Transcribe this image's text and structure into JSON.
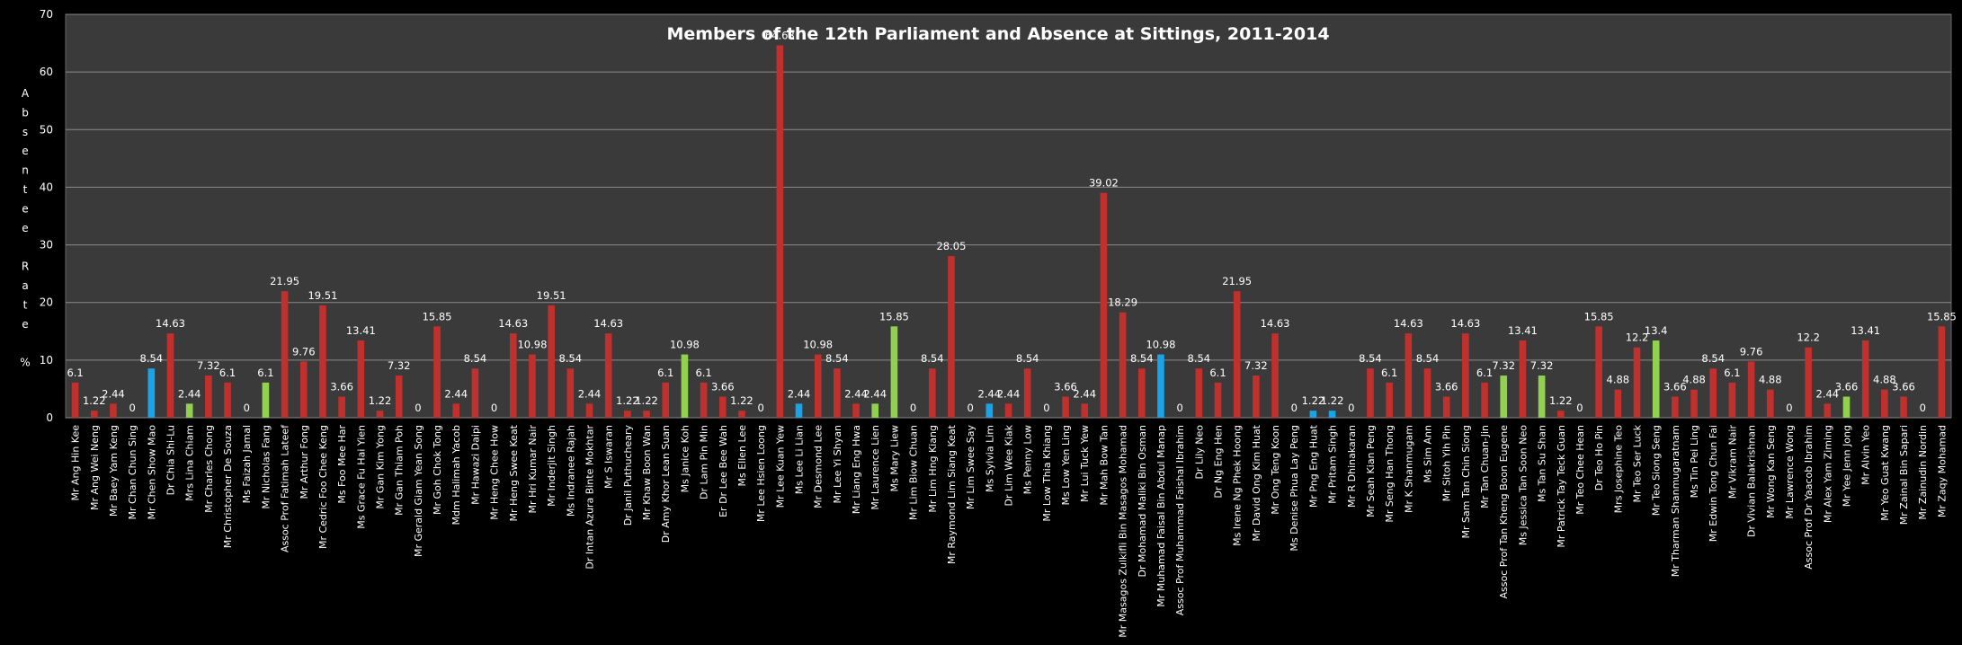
{
  "chart_data": {
    "type": "bar",
    "title": "Members of the 12th Parliament and Absence at Sittings, 2011-2014",
    "ylabel": "Absentee Rate %",
    "ylabel_lines": [
      "A",
      "b",
      "s",
      "e",
      "n",
      "t",
      "e",
      "e",
      "",
      "R",
      "a",
      "t",
      "e",
      "",
      "%"
    ],
    "ylim": [
      0,
      70
    ],
    "yticks": [
      0,
      10,
      20,
      30,
      40,
      50,
      60,
      70
    ],
    "grid": true,
    "colors": {
      "red": "#c0302c",
      "blue": "#1aa3e8",
      "green": "#92d050",
      "background": "#3a3a3a",
      "frame": "#000000"
    },
    "categories": [
      "Mr Ang Hin Kee",
      "Mr Ang Wei Neng",
      "Mr Baey Yam Keng",
      "Mr Chan Chun Sing",
      "Mr Chen Show Mao",
      "Dr Chia Shi-Lu",
      "Mrs Lina Chiam",
      "Mr Charles Chong",
      "Mr Christopher De Souza",
      "Ms Faizah Jamal",
      "Mr Nicholas Fang",
      "Assoc Prof Fatimah Lateef",
      "Mr Arthur Fong",
      "Mr Cedric Foo Chee Keng",
      "Ms Foo Mee Har",
      "Ms Grace Fu Hai Yien",
      "Mr Gan Kim Yong",
      "Mr Gan Thiam Poh",
      "Mr Gerald Giam Yean Song",
      "Mr Goh Chok Tong",
      "Mdm Halimah Yacob",
      "Mr Hawazi Daipi",
      "Mr Heng Chee How",
      "Mr Heng Swee Keat",
      "Mr Hri Kumar Nair",
      "Mr Inderjit Singh",
      "Ms Indranee Rajah",
      "Dr Intan Azura Binte Mokhtar",
      "Mr S Iswaran",
      "Dr Janil Puthucheary",
      "Mr Khaw Boon Wan",
      "Dr Amy Khor Lean Suan",
      "Ms Janice Koh",
      "Dr Lam Pin Min",
      "Er Dr Lee Bee Wah",
      "Ms Ellen Lee",
      "Mr Lee Hsien Loong",
      "Mr Lee Kuan Yew",
      "Ms Lee Li Lian",
      "Mr Desmond Lee",
      "Mr Lee Yi Shyan",
      "Mr Liang Eng Hwa",
      "Mr Laurence Lien",
      "Ms Mary Liew",
      "Mr Lim Biow Chuan",
      "Mr Lim Hng Kiang",
      "Mr Raymond Lim Siang Keat",
      "Mr Lim Swee Say",
      "Ms Sylvia Lim",
      "Dr Lim Wee Kiak",
      "Ms Penny Low",
      "Mr Low Thia Khiang",
      "Ms Low Yen Ling",
      "Mr Lui Tuck Yew",
      "Mr Mah Bow Tan",
      "Mr Masagos Zulkifli Bin Masagos Mohamad",
      "Dr Mohamad Maliki Bin Osman",
      "Mr Muhamad Faisal Bin Abdul Manap",
      "Assoc Prof Muhammad Faishal Ibrahim",
      "Dr Lily Neo",
      "Dr Ng Eng Hen",
      "Ms Irene Ng Phek Hoong",
      "Mr David Ong Kim Huat",
      "Mr Ong Teng Koon",
      "Ms Denise Phua Lay Peng",
      "Mr Png Eng Huat",
      "Mr Pritam Singh",
      "Mr R Dhinakaran",
      "Mr Seah Kian Peng",
      "Mr Seng Han Thong",
      "Mr K Shanmugam",
      "Ms Sim Ann",
      "Mr Sitoh Yih Pin",
      "Mr Sam Tan Chin Siong",
      "Mr Tan Chuan-Jin",
      "Assoc Prof Tan Kheng Boon Eugene",
      "Ms Jessica Tan Soon Neo",
      "Ms Tan Su Shan",
      "Mr Patrick Tay Teck Guan",
      "Mr Teo Chee Hean",
      "Dr Teo Ho Pin",
      "Mrs Josephine Teo",
      "Mr Teo Ser Luck",
      "Mr Teo Siong Seng",
      "Mr Tharman Shanmugaratnam",
      "Ms Tin Pei Ling",
      "Mr Edwin Tong Chun Fai",
      "Mr Vikram Nair",
      "Dr Vivian Balakrishnan",
      "Mr Wong Kan Seng",
      "Mr Lawrence Wong",
      "Assoc Prof Dr Yaacob Ibrahim",
      "Mr Alex Yam Ziming",
      "Mr Yee Jenn Jong",
      "Mr Alvin Yeo",
      "Mr Yeo Guat Kwang",
      "Mr Zainal Bin Sapari",
      "Mr Zainudin Nordin",
      "Mr Zaqy Mohamad"
    ],
    "values": [
      6.1,
      1.22,
      2.44,
      0,
      8.54,
      14.63,
      2.44,
      7.32,
      6.1,
      0,
      6.1,
      21.95,
      9.76,
      19.51,
      3.66,
      13.41,
      1.22,
      7.32,
      0,
      15.85,
      2.44,
      8.54,
      0,
      14.63,
      10.98,
      19.51,
      8.54,
      2.44,
      14.63,
      1.22,
      1.22,
      6.1,
      10.98,
      6.1,
      3.66,
      1.22,
      0,
      64.63,
      2.44,
      10.98,
      8.54,
      2.44,
      2.44,
      15.85,
      0,
      8.54,
      28.05,
      0,
      2.44,
      2.44,
      8.54,
      0,
      3.66,
      2.44,
      39.02,
      18.29,
      8.54,
      10.98,
      0,
      8.54,
      6.1,
      21.95,
      7.32,
      14.63,
      0,
      1.22,
      1.22,
      0,
      8.54,
      6.1,
      14.63,
      8.54,
      3.66,
      14.63,
      6.1,
      7.32,
      13.41,
      7.32,
      1.22,
      0,
      15.85,
      4.88,
      12.2,
      13.4,
      3.66,
      4.88,
      8.54,
      6.1,
      9.76,
      4.88,
      0,
      12.2,
      2.44,
      3.66,
      13.41,
      4.88,
      3.66,
      0,
      15.85
    ],
    "value_labels": [
      "6.1",
      "1.22",
      "2.44",
      "0",
      "8.54",
      "14.63",
      "2.44",
      "7.32",
      "6.1",
      "0",
      "6.1",
      "21.95",
      "9.76",
      "19.51",
      "3.66",
      "13.41",
      "1.22",
      "7.32",
      "0",
      "15.85",
      "2.44",
      "8.54",
      "0",
      "14.63",
      "10.98",
      "19.51",
      "8.54",
      "2.44",
      "14.63",
      "1.22",
      "1.22",
      "6.1",
      "10.98",
      "6.1",
      "3.66",
      "1.22",
      "0",
      "64.63",
      "2.44",
      "10.98",
      "8.54",
      "2.44",
      "2.44",
      "15.85",
      "0",
      "8.54",
      "28.05",
      "0",
      "2.44",
      "2.44",
      "8.54",
      "0",
      "3.66",
      "2.44",
      "39.02",
      "18.29",
      "8.54",
      "10.98",
      "0",
      "8.54",
      "6.1",
      "21.95",
      "7.32",
      "14.63",
      "0",
      "1.22",
      "1.22",
      "0",
      "8.54",
      "6.1",
      "14.63",
      "8.54",
      "3.66",
      "14.63",
      "6.1",
      "7.32",
      "13.41",
      "7.32",
      "1.22",
      "0",
      "15.85",
      "4.88",
      "12.2",
      "13.4",
      "3.66",
      "4.88",
      "8.54",
      "6.1",
      "9.76",
      "4.88",
      "0",
      "12.2",
      "2.44",
      "3.66",
      "13.41",
      "4.88",
      "3.66",
      "0",
      "15.85"
    ],
    "bar_colors": [
      "red",
      "red",
      "red",
      "red",
      "blue",
      "red",
      "green",
      "red",
      "red",
      "red",
      "green",
      "red",
      "red",
      "red",
      "red",
      "red",
      "red",
      "red",
      "blue",
      "red",
      "red",
      "red",
      "red",
      "red",
      "red",
      "red",
      "red",
      "red",
      "red",
      "red",
      "red",
      "red",
      "green",
      "red",
      "red",
      "red",
      "red",
      "red",
      "blue",
      "red",
      "red",
      "red",
      "green",
      "green",
      "red",
      "red",
      "red",
      "red",
      "blue",
      "red",
      "red",
      "blue",
      "red",
      "red",
      "red",
      "red",
      "red",
      "blue",
      "red",
      "red",
      "red",
      "red",
      "red",
      "red",
      "red",
      "blue",
      "blue",
      "red",
      "red",
      "red",
      "red",
      "red",
      "red",
      "red",
      "red",
      "green",
      "red",
      "green",
      "red",
      "red",
      "red",
      "red",
      "red",
      "green",
      "red",
      "red",
      "red",
      "red",
      "red",
      "red",
      "red",
      "red",
      "red",
      "green",
      "red",
      "red",
      "red",
      "red",
      "red"
    ]
  }
}
